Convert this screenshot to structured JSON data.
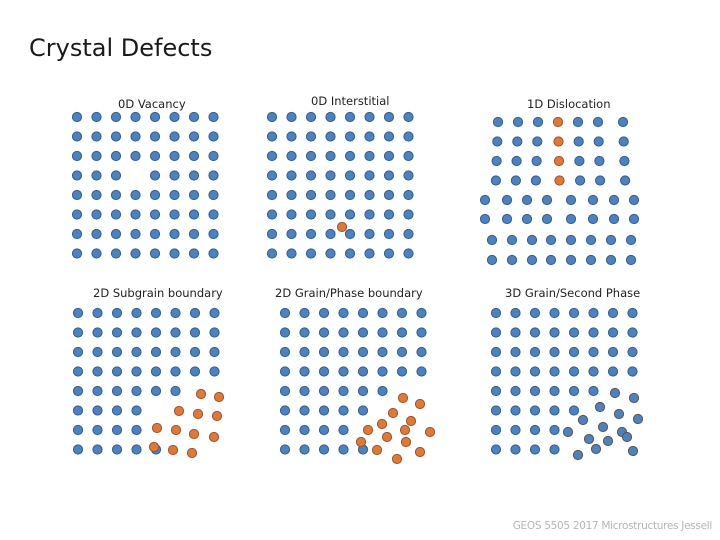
{
  "title": "Crystal Defects",
  "panels": [
    {
      "label": "0D Vacancy"
    },
    {
      "label": "0D Interstitial"
    },
    {
      "label": "1D Dislocation"
    },
    {
      "label": "2D Subgrain boundary"
    },
    {
      "label": "2D Grain/Phase boundary"
    },
    {
      "label": "3D Grain/Second Phase"
    }
  ],
  "footer": "GEOS 5505 2017 Microstructures Jessell",
  "colors": {
    "atom_fill": "#4f81bd",
    "atom_stroke": "#2f5f8f",
    "defect_fill": "#dc7a3c",
    "defect_stroke": "#a0522d",
    "second_phase_fill": "#4f81bd",
    "second_phase_stroke": "#555555"
  }
}
